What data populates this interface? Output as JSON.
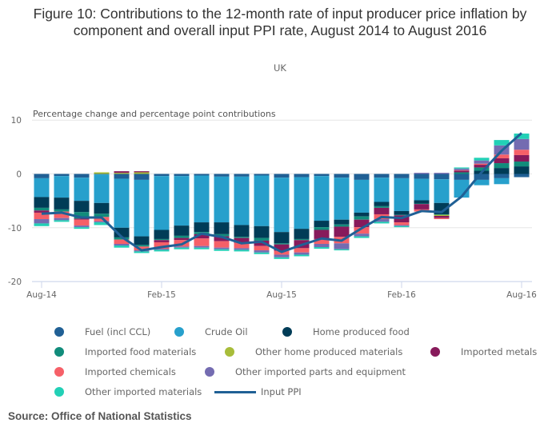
{
  "chart_data": {
    "type": "bar",
    "stacked": true,
    "title": "Figure 10: Contributions to the 12-month rate of input producer price inflation by component and overall input PPI rate, August 2014 to August 2016",
    "subtitle": "UK",
    "ylabel": "Percentage change and percentage point contributions",
    "xlabel": "",
    "ylim": [
      -20,
      10
    ],
    "yticks": [
      10,
      0,
      -10,
      -20
    ],
    "x_tick_labels": [
      "Aug-14",
      "Feb-15",
      "Aug-15",
      "Feb-16",
      "Aug-16"
    ],
    "grid": true,
    "legend_position": "bottom",
    "categories": [
      "Aug-14",
      "Sep-14",
      "Oct-14",
      "Nov-14",
      "Dec-14",
      "Jan-15",
      "Feb-15",
      "Mar-15",
      "Apr-15",
      "May-15",
      "Jun-15",
      "Jul-15",
      "Aug-15",
      "Sep-15",
      "Oct-15",
      "Nov-15",
      "Dec-15",
      "Jan-16",
      "Feb-16",
      "Mar-16",
      "Apr-16",
      "May-16",
      "Jun-16",
      "Jul-16",
      "Aug-16"
    ],
    "series": [
      {
        "name": "Fuel (incl CCL)",
        "color": "#206095",
        "values": [
          -0.8,
          -0.4,
          -0.7,
          -0.1,
          -0.9,
          -1.1,
          -0.4,
          -0.4,
          -0.3,
          -0.5,
          -0.5,
          -0.3,
          -0.7,
          -0.6,
          -0.4,
          -0.7,
          -1.1,
          -0.7,
          -0.8,
          -0.9,
          -1.0,
          -1.1,
          -1.1,
          -0.8,
          -0.6
        ]
      },
      {
        "name": "Crude Oil",
        "color": "#27a0cc",
        "values": [
          -3.5,
          -4.0,
          -4.3,
          -5.3,
          -9.1,
          -10.5,
          -10.0,
          -9.2,
          -8.7,
          -8.5,
          -9.0,
          -9.4,
          -10.1,
          -9.6,
          -8.3,
          -7.8,
          -6.1,
          -4.5,
          -6.1,
          -4.0,
          -4.4,
          -3.3,
          -1.0,
          -1.1,
          0
        ]
      },
      {
        "name": "Home produced food",
        "color": "#003c57",
        "values": [
          -2.0,
          -2.2,
          -2.1,
          -2.0,
          -1.8,
          -1.6,
          -1.7,
          -1.9,
          -1.8,
          -2.2,
          -2.2,
          -2.2,
          -2.1,
          -1.9,
          -1.2,
          -0.9,
          -0.7,
          -0.8,
          -0.7,
          -0.6,
          -2.1,
          0,
          0.6,
          1.1,
          1.4
        ]
      },
      {
        "name": "Imported food materials",
        "color": "#118c7b",
        "values": [
          -0.5,
          -0.4,
          -1.2,
          -0.6,
          -0.4,
          -0.3,
          -0.2,
          -0.4,
          -0.4,
          -0.4,
          -0.2,
          -0.5,
          -0.2,
          -0.2,
          -0.5,
          -0.4,
          -0.6,
          -0.3,
          -0.1,
          -0.1,
          -0.1,
          0.3,
          0.6,
          0.9,
          0.9
        ]
      },
      {
        "name": "Other home produced materials",
        "color": "#a8bd3a",
        "values": [
          0,
          0,
          0,
          0.3,
          0.2,
          0.3,
          0,
          0,
          0,
          0,
          0,
          0,
          0,
          0,
          0,
          0,
          0,
          0,
          0,
          0,
          -0.2,
          0,
          0,
          0,
          0
        ]
      },
      {
        "name": "Imported metals",
        "color": "#871a5b",
        "values": [
          -0.4,
          0,
          -0.2,
          0,
          0.3,
          0.2,
          -0.4,
          -0.4,
          -0.8,
          -0.9,
          -0.9,
          -1.0,
          -1.2,
          -1.5,
          -1.7,
          -1.9,
          -1.4,
          -1.2,
          -1.3,
          -1.0,
          -0.4,
          0.3,
          0.5,
          0.9,
          1.2
        ]
      },
      {
        "name": "Imported chemicals",
        "color": "#f66068",
        "values": [
          -1.2,
          -1.2,
          -1.1,
          -0.8,
          -0.8,
          -0.7,
          -1.2,
          -1.2,
          -1.4,
          -1.2,
          -1.0,
          -0.8,
          -0.7,
          -0.8,
          -0.9,
          -1.2,
          -1.2,
          -0.9,
          -0.5,
          -0.4,
          -0.2,
          0.1,
          0.2,
          0.7,
          1.0
        ]
      },
      {
        "name": "Other imported parts and equipment",
        "color": "#746cb1",
        "values": [
          -0.8,
          -0.4,
          -0.3,
          -0.2,
          -0.3,
          -0.2,
          -0.2,
          -0.2,
          -0.3,
          -0.3,
          -0.3,
          -0.4,
          -0.5,
          -0.4,
          -0.6,
          -1.1,
          -0.5,
          -0.5,
          -0.2,
          0.2,
          0.2,
          0.3,
          0.6,
          1.7,
          2.0
        ]
      },
      {
        "name": "Other imported materials",
        "color": "#22d0b6",
        "values": [
          -0.5,
          -0.3,
          -0.3,
          -0.5,
          -0.4,
          -0.3,
          -0.3,
          -0.3,
          -0.3,
          -0.3,
          -0.3,
          -0.3,
          -0.3,
          -0.3,
          -0.3,
          -0.2,
          -0.3,
          -0.3,
          -0.2,
          0,
          0,
          0.2,
          0.5,
          1.0,
          1.0
        ]
      }
    ],
    "line_series": {
      "name": "Input PPI",
      "color": "#206095",
      "values": [
        -7.4,
        -7.2,
        -8.1,
        -8.1,
        -11.7,
        -14.2,
        -13.6,
        -13.1,
        -11.1,
        -11.7,
        -12.9,
        -12.6,
        -14.5,
        -13.2,
        -12.0,
        -12.4,
        -10.1,
        -8.0,
        -8.2,
        -6.9,
        -7.1,
        -4.2,
        0.3,
        4.3,
        7.6
      ]
    }
  },
  "legend": {
    "items": [
      {
        "label": "Fuel (incl CCL)",
        "color": "#206095",
        "shape": "dot"
      },
      {
        "label": "Crude Oil",
        "color": "#27a0cc",
        "shape": "dot"
      },
      {
        "label": "Home produced food",
        "color": "#003c57",
        "shape": "dot"
      },
      {
        "label": "Imported food materials",
        "color": "#118c7b",
        "shape": "dot"
      },
      {
        "label": "Other home produced materials",
        "color": "#a8bd3a",
        "shape": "dot"
      },
      {
        "label": "Imported metals",
        "color": "#871a5b",
        "shape": "dot"
      },
      {
        "label": "Imported chemicals",
        "color": "#f66068",
        "shape": "dot"
      },
      {
        "label": "Other imported parts and equipment",
        "color": "#746cb1",
        "shape": "dot"
      },
      {
        "label": "Other imported materials",
        "color": "#22d0b6",
        "shape": "dot"
      },
      {
        "label": "Input PPI",
        "color": "#206095",
        "shape": "line"
      }
    ]
  },
  "source": "Source: Office of National Statistics"
}
